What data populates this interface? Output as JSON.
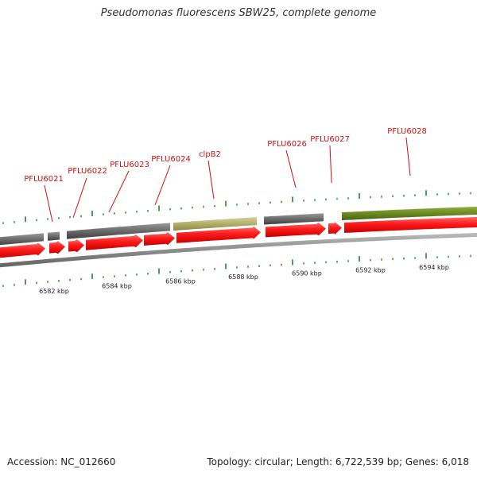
{
  "title": "Pseudomonas fluorescens SBW25, complete genome",
  "footer": {
    "accession": "Accession: NC_012660",
    "summary": "Topology: circular; Length: 6,722,539 bp; Genes: 6,018"
  },
  "colors": {
    "cds_arrow": "#ff1a1a",
    "gene_grey": "#6e6e6e",
    "gene_khaki": "#b9b46e",
    "gene_olive": "#6b8a22",
    "backbone": "#8c8c8c",
    "tick": "#1a8c1a",
    "label": "#cc1111"
  },
  "gene_labels": [
    "PFLU6021",
    "PFLU6022",
    "PFLU6023",
    "PFLU6024",
    "clpB2",
    "PFLU6026",
    "PFLU6027",
    "PFLU6028"
  ],
  "scale_labels": [
    "6582 kbp",
    "6584 kbp",
    "6586 kbp",
    "6588 kbp",
    "6590 kbp",
    "6592 kbp",
    "6594 kbp"
  ]
}
